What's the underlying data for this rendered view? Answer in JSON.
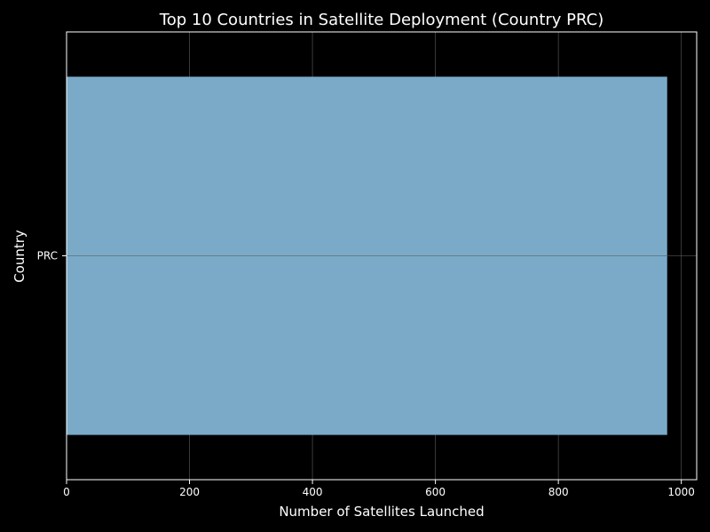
{
  "chart_data": {
    "type": "bar",
    "orientation": "horizontal",
    "title": "Top 10 Countries in Satellite Deployment (Country PRC)",
    "xlabel": "Number of Satellites Launched",
    "ylabel": "Country",
    "categories": [
      "PRC"
    ],
    "values": [
      977
    ],
    "xlim": [
      0,
      1025
    ],
    "xticks": [
      0,
      200,
      400,
      600,
      800,
      1000
    ],
    "grid": true,
    "bar_color": "#7aaac8",
    "background_color": "#000000",
    "text_color": "#ffffff",
    "grid_color": "#5a5a5a"
  }
}
